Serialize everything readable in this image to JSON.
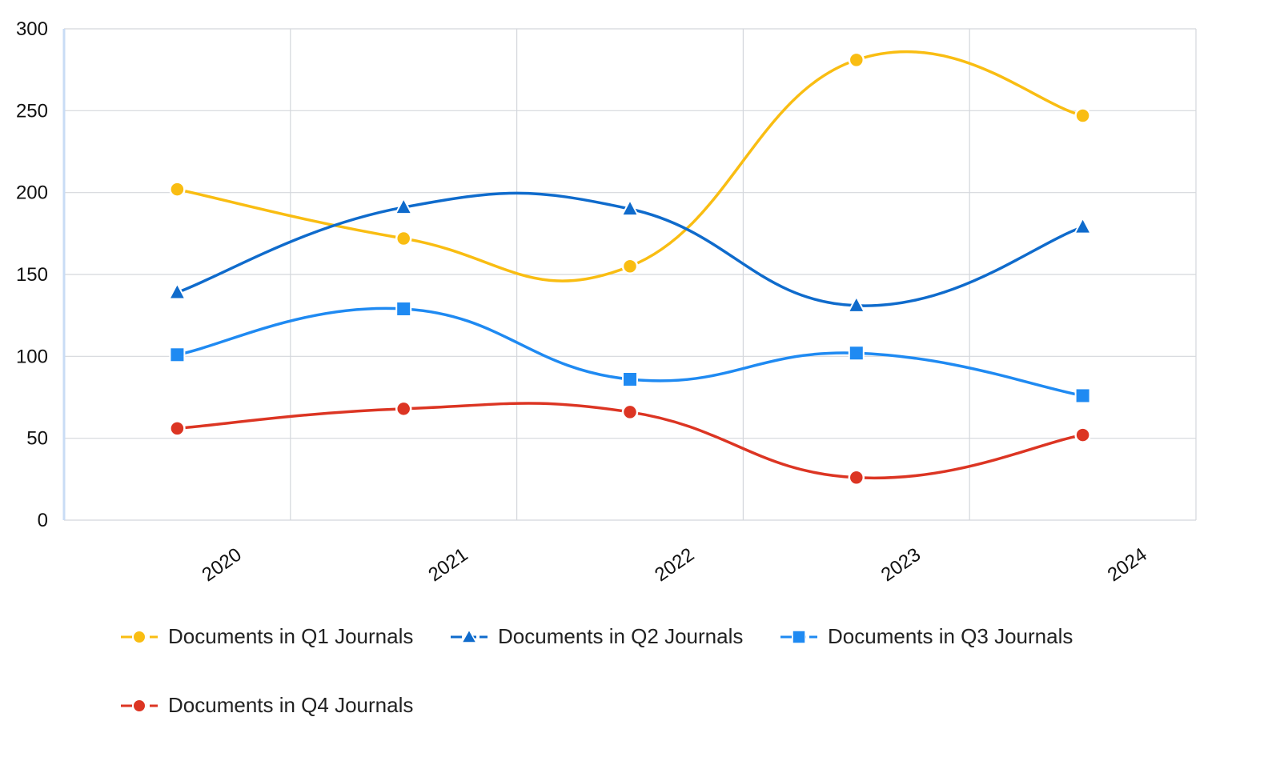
{
  "chart_data": {
    "type": "line",
    "title": "",
    "xlabel": "",
    "ylabel": "",
    "categories": [
      "2020",
      "2021",
      "2022",
      "2023",
      "2024"
    ],
    "ylim": [
      0,
      300
    ],
    "yticks": [
      0,
      50,
      100,
      150,
      200,
      250,
      300
    ],
    "grid": true,
    "legend_position": "bottom",
    "series": [
      {
        "name": "Documents in Q1 Journals",
        "color": "#F9BD12",
        "marker": "circle",
        "values": [
          202,
          172,
          155,
          281,
          247
        ]
      },
      {
        "name": "Documents in Q2 Journals",
        "color": "#0F6BCC",
        "marker": "triangle",
        "values": [
          139,
          191,
          190,
          131,
          179
        ]
      },
      {
        "name": "Documents in Q3 Journals",
        "color": "#1F8AF2",
        "marker": "square",
        "values": [
          101,
          129,
          86,
          102,
          76
        ]
      },
      {
        "name": "Documents in Q4 Journals",
        "color": "#DC3523",
        "marker": "circle",
        "values": [
          56,
          68,
          66,
          26,
          52
        ]
      }
    ]
  }
}
